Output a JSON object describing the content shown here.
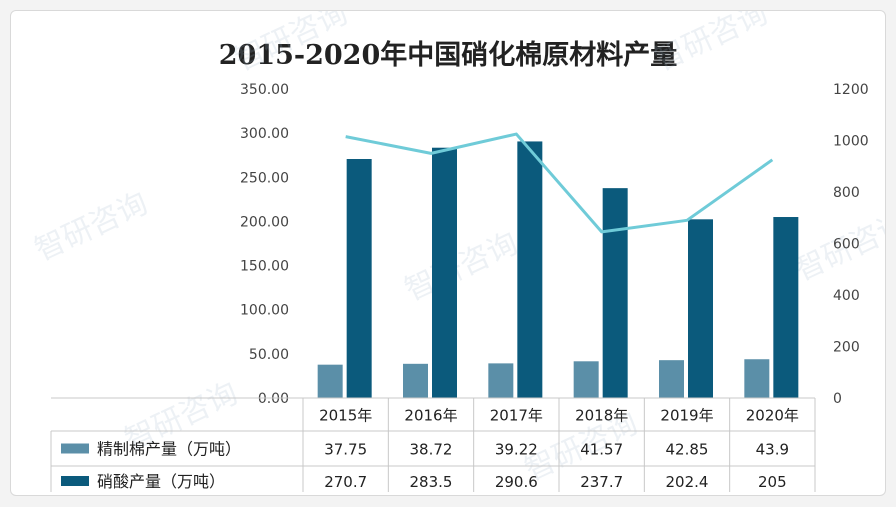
{
  "title": "2015-2020年中国硝化棉原材料产量",
  "chart_data": {
    "type": "bar",
    "categories": [
      "2015年",
      "2016年",
      "2017年",
      "2018年",
      "2019年",
      "2020年"
    ],
    "series": [
      {
        "name": "精制棉产量（万吨）",
        "axis": "left",
        "style": "bar",
        "color": "#5b8fa8",
        "values": [
          37.75,
          38.72,
          39.22,
          41.57,
          42.85,
          43.9
        ]
      },
      {
        "name": "硝酸产量（万吨）",
        "axis": "left",
        "style": "bar",
        "color": "#0b5a7c",
        "values": [
          270.7,
          283.5,
          290.6,
          237.7,
          202.4,
          205
        ]
      },
      {
        "name": "",
        "axis": "right",
        "style": "line",
        "color": "#6fcbd8",
        "values": [
          1015,
          950,
          1025,
          645,
          690,
          925
        ]
      }
    ],
    "y_left": {
      "range": [
        0,
        350
      ],
      "ticks": [
        "0.00",
        "50.00",
        "100.00",
        "150.00",
        "200.00",
        "250.00",
        "300.00",
        "350.00"
      ]
    },
    "y_right": {
      "range": [
        0,
        1200
      ],
      "ticks": [
        "0",
        "200",
        "400",
        "600",
        "800",
        "1000",
        "1200"
      ]
    },
    "data_table": {
      "rows": [
        {
          "label": "精制棉产量（万吨）",
          "values": [
            "37.75",
            "38.72",
            "39.22",
            "41.57",
            "42.85",
            "43.9"
          ]
        },
        {
          "label": "硝酸产量（万吨）",
          "values": [
            "270.7",
            "283.5",
            "290.6",
            "237.7",
            "202.4",
            "205"
          ]
        }
      ]
    },
    "grid": false
  },
  "watermarks": [
    "智研咨询",
    "www.chyxx.com"
  ]
}
